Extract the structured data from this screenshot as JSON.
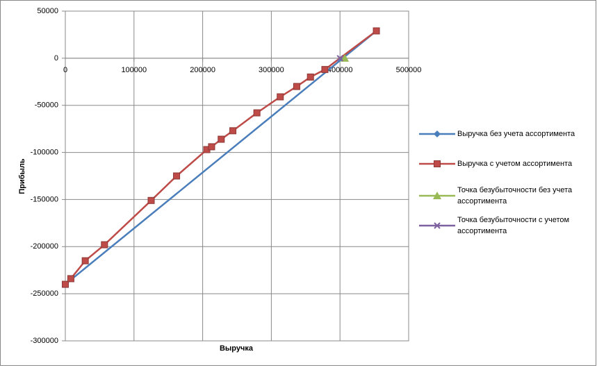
{
  "chart_data": {
    "type": "scatter",
    "x_label": "Выручка",
    "y_label": "Прибыль",
    "xlim": [
      0,
      500000
    ],
    "xticks": [
      0,
      100000,
      200000,
      300000,
      400000,
      500000
    ],
    "ylim": [
      -300000,
      50000
    ],
    "yticks": [
      -300000,
      -250000,
      -200000,
      -150000,
      -100000,
      -50000,
      0,
      50000
    ],
    "grid": true,
    "legend": "right",
    "series": [
      {
        "name": "Выручка без учета ассортимента",
        "color": "#4a7ebb",
        "marker": "diamond",
        "x": [
          0,
          453000
        ],
        "values": [
          -240000,
          29000
        ]
      },
      {
        "name": "Выручка с учетом ассортимента",
        "color": "#be4b48",
        "marker": "square",
        "x": [
          0,
          8000,
          29000,
          57000,
          125000,
          162000,
          206000,
          213000,
          227000,
          244000,
          279000,
          313000,
          337000,
          357000,
          378000,
          453000
        ],
        "values": [
          -240000,
          -234000,
          -215000,
          -198000,
          -151000,
          -125000,
          -97000,
          -94000,
          -86000,
          -77000,
          -58000,
          -41000,
          -30000,
          -20000,
          -12000,
          29000
        ]
      },
      {
        "name": "Точка безубыточности без учета ассортимента",
        "color": "#98b954",
        "marker": "triangle",
        "x": [
          407000
        ],
        "values": [
          0
        ]
      },
      {
        "name": "Точка безубыточности с учетом ассортимента",
        "color": "#7d60a0",
        "marker": "x",
        "x": [
          400000
        ],
        "values": [
          0
        ]
      }
    ]
  }
}
